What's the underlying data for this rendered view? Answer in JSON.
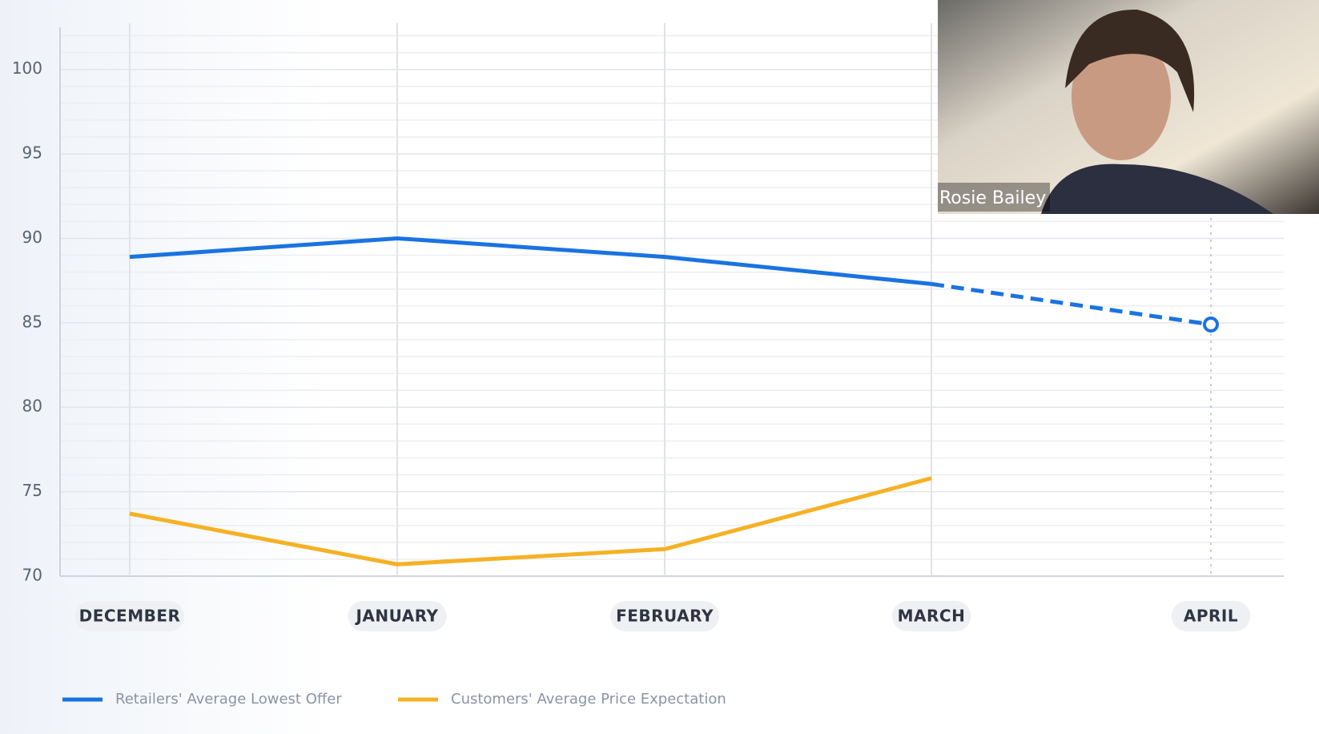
{
  "chart_data": {
    "type": "line",
    "categories": [
      "DECEMBER",
      "JANUARY",
      "FEBRUARY",
      "MARCH",
      "APRIL"
    ],
    "series": [
      {
        "name": "Retailers' Average Lowest Offer",
        "color": "#1a73e0",
        "values": [
          88.9,
          90,
          88.9,
          87.3,
          84.9
        ],
        "dashed_from_index": 3
      },
      {
        "name": "Customers' Average Price Expectation",
        "color": "#f5b125",
        "values": [
          73.7,
          70.7,
          71.6,
          75.8,
          null
        ]
      }
    ],
    "ylim": [
      70,
      102.5
    ],
    "yticks": [
      70,
      75,
      80,
      85,
      90,
      95,
      100
    ],
    "minor_yticks": [
      71,
      72,
      73,
      74,
      76,
      77,
      78,
      79,
      81,
      82,
      83,
      84,
      86,
      87,
      88,
      89,
      91,
      92,
      93,
      94,
      96,
      97,
      98,
      99,
      101,
      102
    ],
    "grid": true
  },
  "video_overlay": {
    "name": "Rosie Bailey"
  }
}
